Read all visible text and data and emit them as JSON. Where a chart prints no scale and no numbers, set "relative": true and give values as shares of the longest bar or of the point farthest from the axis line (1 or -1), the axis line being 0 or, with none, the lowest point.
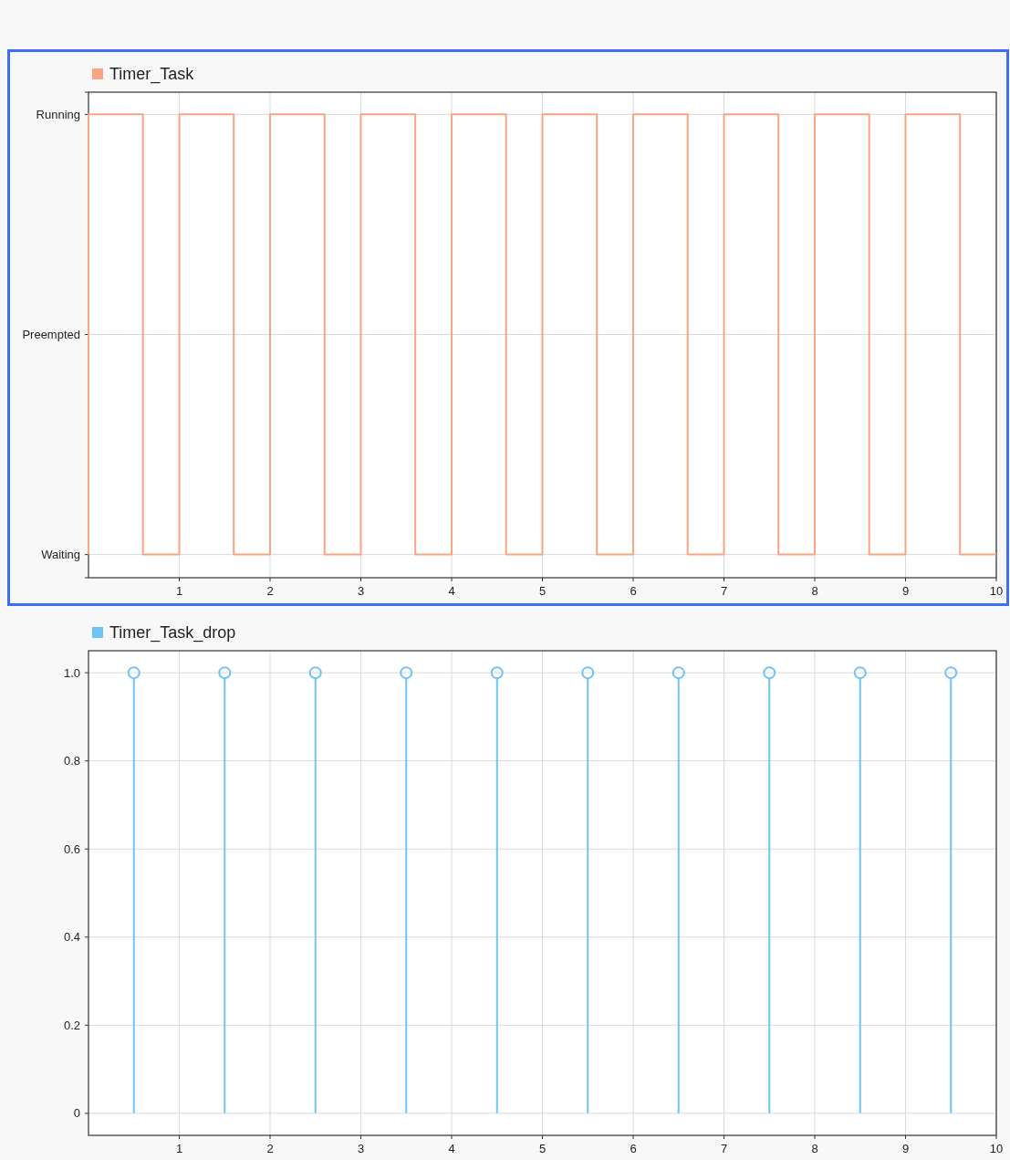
{
  "chart_data": [
    {
      "type": "step",
      "xlim": [
        0,
        10
      ],
      "xticks": [
        1,
        2,
        3,
        4,
        5,
        6,
        7,
        8,
        9,
        10
      ],
      "relative": true,
      "annotations": [
        "Running",
        "Preempted",
        "Waiting"
      ],
      "grid": true,
      "legend": "top left",
      "series": [
        {
          "name": "Timer_Task",
          "color": "#f7a582",
          "x": [
            0,
            0,
            0.6,
            1,
            1.6,
            2,
            2.6,
            3,
            3.6,
            4,
            4.6,
            5,
            5.6,
            6,
            6.6,
            7,
            7.6,
            8,
            8.6,
            9,
            9.6,
            10
          ],
          "values": [
            0.05,
            1,
            0.05,
            1,
            0.05,
            1,
            0.05,
            1,
            0.05,
            1,
            0.05,
            1,
            0.05,
            1,
            0.05,
            1,
            0.05,
            1,
            0.05,
            1,
            0.05,
            0.05
          ]
        }
      ]
    },
    {
      "type": "lollipop",
      "xlim": [
        0,
        10
      ],
      "xticks": [
        1,
        2,
        3,
        4,
        5,
        6,
        7,
        8,
        9,
        10
      ],
      "ylim": [
        -0.05,
        1.05
      ],
      "yticks": [
        0,
        0.2,
        0.4,
        0.6,
        0.8,
        {
          "value": 1,
          "label": "1.0"
        }
      ],
      "grid": true,
      "legend": "top left",
      "marker": "circle",
      "series": [
        {
          "name": "Timer_Task_drop",
          "color": "#6ec4f5",
          "x": [
            0.5,
            1.5,
            2.5,
            3.5,
            4.5,
            5.5,
            6.5,
            7.5,
            8.5,
            9.5
          ],
          "values": [
            1,
            1,
            1,
            1,
            1,
            1,
            1,
            1,
            1,
            1
          ]
        }
      ]
    }
  ]
}
